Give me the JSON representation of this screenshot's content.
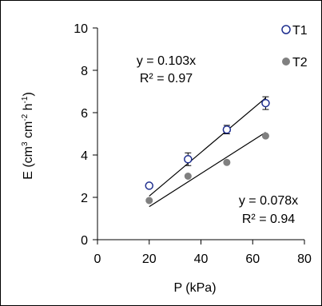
{
  "chart_data": {
    "type": "scatter",
    "xlabel": "P (kPa)",
    "ylabel": {
      "base": "E  (cm",
      "sup1": "3",
      "mid1": " cm",
      "sup2": "-2",
      "mid2": " h",
      "sup3": "-1",
      "end": ")"
    },
    "xlim": [
      0,
      80
    ],
    "ylim": [
      0,
      10
    ],
    "xticks": [
      0,
      20,
      40,
      60,
      80
    ],
    "yticks": [
      0,
      2,
      4,
      6,
      8,
      10
    ],
    "grid": false,
    "legend": "top-right",
    "series": [
      {
        "name": "T1",
        "marker": "open-circle",
        "color": "#1f2f8f",
        "x": [
          20,
          35,
          50,
          65
        ],
        "y": [
          2.55,
          3.8,
          5.2,
          6.45
        ],
        "err": [
          0.1,
          0.3,
          0.2,
          0.3
        ],
        "fit": {
          "slope": 0.103,
          "equation": "y = 0.103x",
          "r2": "R² = 0.97"
        }
      },
      {
        "name": "T2",
        "marker": "filled-circle",
        "color": "#808080",
        "x": [
          20,
          35,
          50,
          65
        ],
        "y": [
          1.85,
          3.0,
          3.65,
          4.9
        ],
        "err": [
          0.05,
          0.05,
          0.05,
          0.05
        ],
        "fit": {
          "slope": 0.078,
          "equation": "y = 0.078x",
          "r2": "R² = 0.94"
        }
      }
    ]
  }
}
